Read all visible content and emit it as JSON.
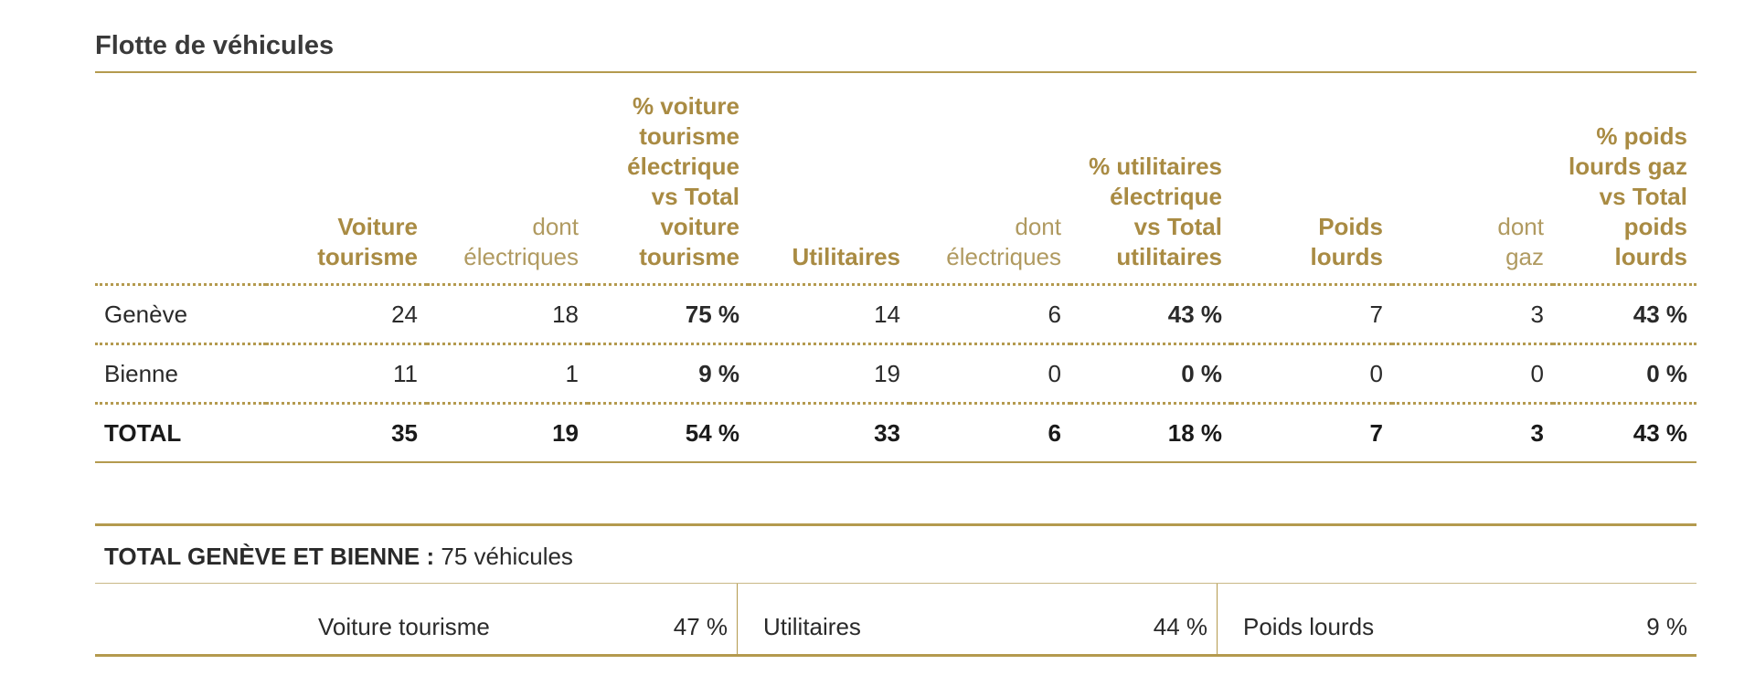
{
  "title": "Flotte de véhicules",
  "headers": {
    "voiture": [
      "Voiture",
      "tourisme"
    ],
    "voiture_elec": [
      "dont",
      "électriques"
    ],
    "voiture_pct": [
      "% voiture",
      "tourisme",
      "électrique",
      "vs Total",
      "voiture",
      "tourisme"
    ],
    "utilitaires": [
      "Utilitaires"
    ],
    "util_elec": [
      "dont",
      "électriques"
    ],
    "util_pct": [
      "% utilitaires",
      "électrique",
      "vs Total",
      "utilitaires"
    ],
    "poids": [
      "Poids",
      "lourds"
    ],
    "poids_gaz": [
      "dont",
      "gaz"
    ],
    "poids_pct": [
      "% poids",
      "lourds gaz",
      "vs Total",
      "poids",
      "lourds"
    ]
  },
  "rows": [
    {
      "label": "Genève",
      "voiture": "24",
      "voiture_elec": "18",
      "voiture_pct": "75 %",
      "utilitaires": "14",
      "util_elec": "6",
      "util_pct": "43 %",
      "poids": "7",
      "poids_gaz": "3",
      "poids_pct": "43 %"
    },
    {
      "label": "Bienne",
      "voiture": "11",
      "voiture_elec": "1",
      "voiture_pct": "9 %",
      "utilitaires": "19",
      "util_elec": "0",
      "util_pct": "0 %",
      "poids": "0",
      "poids_gaz": "0",
      "poids_pct": "0 %"
    }
  ],
  "total": {
    "label": "TOTAL",
    "voiture": "35",
    "voiture_elec": "19",
    "voiture_pct": "54 %",
    "utilitaires": "33",
    "util_elec": "6",
    "util_pct": "18 %",
    "poids": "7",
    "poids_gaz": "3",
    "poids_pct": "43 %"
  },
  "summary": {
    "heading": "TOTAL GENÈVE ET BIENNE :",
    "count": "75 véhicules",
    "items": [
      {
        "label": "Voiture tourisme",
        "value": "47 %"
      },
      {
        "label": "Utilitaires",
        "value": "44 %"
      },
      {
        "label": "Poids lourds",
        "value": "9 %"
      }
    ]
  },
  "colors": {
    "accent": "#a98b43",
    "rule": "#b49a4e"
  }
}
